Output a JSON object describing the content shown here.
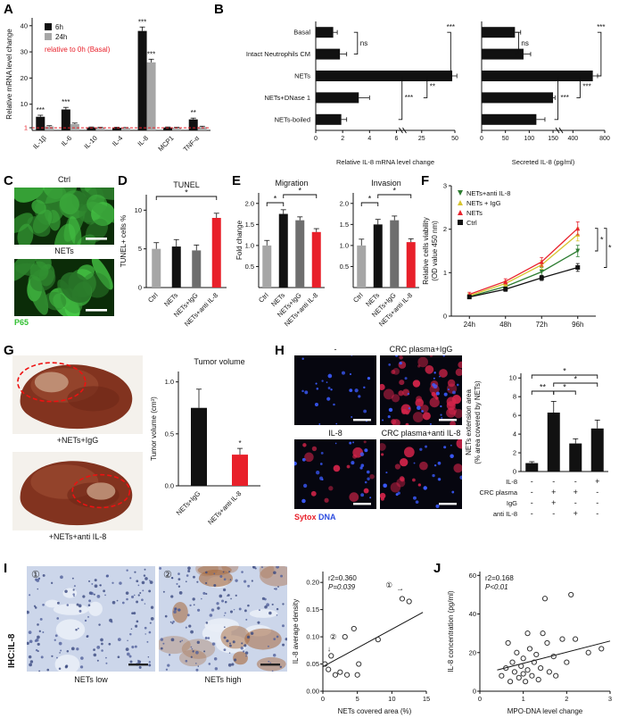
{
  "letters": {
    "A": "A",
    "B": "B",
    "C": "C",
    "D": "D",
    "E": "E",
    "F": "F",
    "G": "G",
    "H": "H",
    "I": "I",
    "J": "J"
  },
  "panelC": {
    "ctrl": "Ctrl",
    "nets": "NETs",
    "p65": "P65"
  },
  "panelG": {
    "liver1": "+NETs+IgG",
    "liver2": "+NETs+anti IL-8"
  },
  "panelH": {
    "img_labels": [
      "-",
      "CRC plasma+IgG",
      "IL-8",
      "CRC plasma+anti IL-8"
    ],
    "sytox": "Sytox",
    "dna": "DNA"
  },
  "panelI": {
    "ihc": "IHC:IL-8",
    "c1": "①",
    "c2": "②",
    "low": "NETs low",
    "high": "NETs high"
  },
  "chart_data": {
    "A": {
      "type": "bar",
      "ylabel": "Relative mRNA level change",
      "note": "relative to 0h (Basal)",
      "categories": [
        "IL-1β",
        "IL-6",
        "IL-10",
        "IL-4",
        "IL-8",
        "MCP1",
        "TNF-α"
      ],
      "series": [
        {
          "name": "6h",
          "color": "#111111",
          "values": [
            5.2,
            8.0,
            1.1,
            1.0,
            38.0,
            1.1,
            4.2
          ],
          "errors": [
            0.6,
            0.8,
            0.2,
            0.2,
            1.5,
            0.2,
            0.5
          ]
        },
        {
          "name": "24h",
          "color": "#a6a6a6",
          "values": [
            1.5,
            2.4,
            1.0,
            0.9,
            26.0,
            1.0,
            1.3
          ],
          "errors": [
            0.3,
            0.4,
            0.2,
            0.2,
            1.2,
            0.2,
            0.3
          ]
        }
      ],
      "ylim": [
        0,
        43
      ],
      "yticks": [
        {
          "v": 1,
          "label": "1",
          "color": "#e8202a"
        },
        {
          "v": 10,
          "label": "10"
        },
        {
          "v": 20,
          "label": "20"
        },
        {
          "v": 30,
          "label": "30"
        },
        {
          "v": 40,
          "label": "40"
        }
      ],
      "baseline": {
        "y": 1,
        "color": "#e8202a"
      },
      "sig": [
        {
          "cat": 0,
          "series": 0,
          "text": "***"
        },
        {
          "cat": 1,
          "series": 0,
          "text": "***"
        },
        {
          "cat": 4,
          "series": 0,
          "text": "***"
        },
        {
          "cat": 4,
          "series": 1,
          "text": "***"
        },
        {
          "cat": 6,
          "series": 0,
          "text": "**"
        }
      ],
      "rot": true
    },
    "B_left": {
      "type": "hbar",
      "xlabel": "Relative IL-8 mRNA level change",
      "categories": [
        "Basal",
        "Intact Neutrophils CM",
        "NETs",
        "NETs+DNase 1",
        "NETs-boiled"
      ],
      "values": [
        1.3,
        1.8,
        48,
        3.2,
        1.9
      ],
      "errors": [
        0.3,
        0.5,
        3.5,
        0.8,
        0.4
      ],
      "xticks": [
        0,
        2,
        4,
        6,
        25,
        50
      ],
      "brk": 6,
      "brkFrac": 0.58,
      "xmax": 50,
      "labels": true,
      "sig": [
        {
          "rows": [
            0,
            1
          ],
          "xf": 0.3,
          "text": "ns"
        },
        {
          "rows": [
            0,
            2
          ],
          "xf": 0.97,
          "text": "***"
        },
        {
          "rows": [
            2,
            3
          ],
          "xf": 0.8,
          "text": "**"
        },
        {
          "rows": [
            2,
            4
          ],
          "xf": 0.62,
          "text": "***"
        }
      ]
    },
    "B_right": {
      "type": "hbar",
      "xlabel": "Secreted IL-8 (pg/ml)",
      "categories": [
        "Basal",
        "Intact Neutrophils CM",
        "NETs",
        "NETs+DNase 1",
        "NETs-boiled"
      ],
      "values": [
        70,
        88,
        650,
        150,
        115
      ],
      "errors": [
        12,
        15,
        60,
        25,
        18
      ],
      "xticks": [
        0,
        50,
        100,
        150,
        400,
        800
      ],
      "brk": 150,
      "brkFrac": 0.58,
      "xmax": 800,
      "labels": false,
      "sig": [
        {
          "rows": [
            0,
            1
          ],
          "xf": 0.3,
          "text": "ns"
        },
        {
          "rows": [
            0,
            2
          ],
          "xf": 0.97,
          "text": "***"
        },
        {
          "rows": [
            2,
            3
          ],
          "xf": 0.8,
          "text": "***"
        },
        {
          "rows": [
            2,
            4
          ],
          "xf": 0.62,
          "text": "***"
        }
      ]
    },
    "D": {
      "type": "bar",
      "title": "TUNEL",
      "ylabel": "TUNEL+ cells %",
      "categories": [
        "Ctrl",
        "NETs",
        "NETs+IgG",
        "NETs+anti IL-8"
      ],
      "series": [
        {
          "name": "",
          "colors": [
            "#a6a6a6",
            "#111111",
            "#6e6e6e",
            "#e8202a"
          ],
          "values": [
            5.0,
            5.3,
            4.8,
            9.0
          ],
          "errors": [
            0.8,
            0.9,
            0.7,
            0.6
          ]
        }
      ],
      "ylim": [
        0,
        12
      ],
      "yticks": [
        {
          "v": 0,
          "label": "0"
        },
        {
          "v": 5,
          "label": "5"
        },
        {
          "v": 10,
          "label": "10"
        }
      ],
      "brackets": [
        {
          "from": 0,
          "to": 3,
          "text": "*",
          "level": 0
        }
      ],
      "rot": true
    },
    "E_migration": {
      "type": "bar",
      "title": "Migration",
      "ylabel": "Fold change",
      "categories": [
        "Ctrl",
        "NETs",
        "NETs+IgG",
        "NETs+anti IL-8"
      ],
      "series": [
        {
          "name": "",
          "colors": [
            "#a6a6a6",
            "#111111",
            "#6e6e6e",
            "#e8202a"
          ],
          "values": [
            1.0,
            1.75,
            1.6,
            1.32
          ],
          "errors": [
            0.12,
            0.1,
            0.08,
            0.08
          ]
        }
      ],
      "ylim": [
        0,
        2.25
      ],
      "yticks": [
        {
          "v": 0.5,
          "label": "0.5"
        },
        {
          "v": 1,
          "label": "1.0"
        },
        {
          "v": 1.5,
          "label": "1.5"
        },
        {
          "v": 2,
          "label": "2.0"
        }
      ],
      "brackets": [
        {
          "from": 0,
          "to": 1,
          "text": "*",
          "level": 1
        },
        {
          "from": 1,
          "to": 3,
          "text": "*",
          "level": 0
        }
      ],
      "rot": true
    },
    "E_invasion": {
      "type": "bar",
      "title": "Invasion",
      "categories": [
        "Ctrl",
        "NETs",
        "NETs+IgG",
        "NETs+anti IL-8"
      ],
      "series": [
        {
          "name": "",
          "colors": [
            "#a6a6a6",
            "#111111",
            "#6e6e6e",
            "#e8202a"
          ],
          "values": [
            1.0,
            1.5,
            1.6,
            1.08
          ],
          "errors": [
            0.15,
            0.12,
            0.1,
            0.08
          ]
        }
      ],
      "ylim": [
        0,
        2.25
      ],
      "yticks": [
        {
          "v": 0.5,
          "label": "0.5"
        },
        {
          "v": 1,
          "label": "1.0"
        },
        {
          "v": 1.5,
          "label": "1.5"
        },
        {
          "v": 2,
          "label": "2.0"
        }
      ],
      "brackets": [
        {
          "from": 0,
          "to": 1,
          "text": "*",
          "level": 1
        },
        {
          "from": 1,
          "to": 3,
          "text": "*",
          "level": 0
        }
      ],
      "rot": true
    },
    "F": {
      "type": "line",
      "ylabel_lines": [
        "Relative cells viability",
        "(OD value 450 nm)"
      ],
      "x": [
        "24h",
        "48h",
        "72h",
        "96h"
      ],
      "ylim": [
        0,
        3
      ],
      "yticks": [
        0,
        1,
        2,
        3
      ],
      "series": [
        {
          "name": "NETs+anti IL-8",
          "color": "#2e7d32",
          "marker": "triangle-down",
          "values": [
            0.45,
            0.68,
            1.02,
            1.5
          ],
          "errors": [
            0.05,
            0.06,
            0.1,
            0.13
          ]
        },
        {
          "name": "NETs + IgG",
          "color": "#d7c430",
          "marker": "triangle-up",
          "values": [
            0.47,
            0.75,
            1.18,
            1.88
          ],
          "errors": [
            0.05,
            0.06,
            0.1,
            0.15
          ]
        },
        {
          "name": "NETs",
          "color": "#e8232d",
          "marker": "triangle-up",
          "values": [
            0.5,
            0.8,
            1.25,
            2.02
          ],
          "errors": [
            0.05,
            0.06,
            0.1,
            0.15
          ]
        },
        {
          "name": "Ctrl",
          "color": "#111111",
          "marker": "square",
          "values": [
            0.44,
            0.62,
            0.88,
            1.12
          ],
          "errors": [
            0.04,
            0.05,
            0.06,
            0.09
          ]
        }
      ],
      "sig": [
        "*",
        "*"
      ]
    },
    "G": {
      "type": "bar",
      "title": "Tumor volume",
      "ylabel": "Tumor volume (cm³)",
      "categories": [
        "NETs+IgG",
        "NETs+anti IL-8"
      ],
      "series": [
        {
          "name": "",
          "colors": [
            "#111111",
            "#e8202a"
          ],
          "values": [
            0.75,
            0.3
          ],
          "errors": [
            0.18,
            0.06
          ]
        }
      ],
      "ylim": [
        0,
        1.1
      ],
      "yticks": [
        {
          "v": 0,
          "label": "0.0"
        },
        {
          "v": 0.5,
          "label": "0.5"
        },
        {
          "v": 1,
          "label": "1.0"
        }
      ],
      "sig": [
        {
          "cat": 1,
          "series": 0,
          "text": "*"
        }
      ],
      "rot": true,
      "bw": 18
    },
    "H": {
      "type": "bar",
      "ylabel_lines": [
        "NETs extension area",
        "(% area covered by NETs)"
      ],
      "categories": [
        "",
        "",
        "",
        ""
      ],
      "series": [
        {
          "name": "",
          "colors": [
            "#111111",
            "#111111",
            "#111111",
            "#111111"
          ],
          "values": [
            0.9,
            6.3,
            3.0,
            4.6
          ],
          "errors": [
            0.15,
            1.2,
            0.5,
            0.9
          ]
        }
      ],
      "ylim": [
        0,
        10.5
      ],
      "yticks": [
        {
          "v": 0,
          "label": "0"
        },
        {
          "v": 2,
          "label": "2"
        },
        {
          "v": 4,
          "label": "4"
        },
        {
          "v": 6,
          "label": "6"
        },
        {
          "v": 8,
          "label": "8"
        },
        {
          "v": 10,
          "label": "10"
        }
      ],
      "brackets": [
        {
          "from": 0,
          "to": 3,
          "text": "*",
          "level": 0
        },
        {
          "from": 1,
          "to": 3,
          "text": "*",
          "level": 1
        },
        {
          "from": 0,
          "to": 1,
          "text": "**",
          "level": 2
        },
        {
          "from": 1,
          "to": 2,
          "text": "*",
          "level": 2
        }
      ],
      "bw": 14,
      "matrix": {
        "rows": [
          "IL-8",
          "CRC plasma",
          "IgG",
          "anti IL-8"
        ],
        "values": [
          [
            "-",
            "-",
            "-",
            "+"
          ],
          [
            "-",
            "+",
            "+",
            "-"
          ],
          [
            "-",
            "+",
            "-",
            "-"
          ],
          [
            "-",
            "-",
            "+",
            "-"
          ]
        ]
      }
    },
    "I": {
      "type": "scatter",
      "xlabel": "NETs covered area (%)",
      "ylabel": "IL-8 average density",
      "r2_label": "r2=0.360",
      "p_label": "P=0.039",
      "xlim": [
        0,
        15
      ],
      "xticks": [
        0,
        5,
        10,
        15
      ],
      "ylim": [
        0,
        0.22
      ],
      "yticks": [
        {
          "v": 0,
          "label": "0.00"
        },
        {
          "v": 0.05,
          "label": "0.05"
        },
        {
          "v": 0.1,
          "label": "0.10"
        },
        {
          "v": 0.15,
          "label": "0.15"
        },
        {
          "v": 0.2,
          "label": "0.20"
        }
      ],
      "points": [
        [
          0.3,
          0.05
        ],
        [
          0.8,
          0.04
        ],
        [
          1.2,
          0.065
        ],
        [
          1.8,
          0.03
        ],
        [
          2.5,
          0.035
        ],
        [
          3.2,
          0.1
        ],
        [
          3.5,
          0.03
        ],
        [
          4.5,
          0.115
        ],
        [
          5.0,
          0.03
        ],
        [
          5.2,
          0.05
        ],
        [
          8.0,
          0.095
        ],
        [
          11.5,
          0.17
        ],
        [
          12.5,
          0.165
        ]
      ],
      "line": [
        [
          0,
          0.045
        ],
        [
          14.5,
          0.145
        ]
      ],
      "annots": [
        {
          "text": "①",
          "x": 9.6,
          "y": 0.195
        },
        {
          "text": "→",
          "x": 11.2,
          "y": 0.19
        },
        {
          "text": "②",
          "x": 1.5,
          "y": 0.1
        },
        {
          "text": "↓",
          "x": 0.9,
          "y": 0.078
        }
      ]
    },
    "J": {
      "type": "scatter",
      "xlabel": "MPO-DNA level change",
      "ylabel": "IL-8 concentration (pg/ml)",
      "r2_label": "r2=0.168",
      "p_label": "P<0.01",
      "xlim": [
        0,
        3
      ],
      "xticks": [
        0,
        1,
        2,
        3
      ],
      "ylim": [
        0,
        62
      ],
      "yticks": [
        {
          "v": 0,
          "label": "0"
        },
        {
          "v": 20,
          "label": "20"
        },
        {
          "v": 40,
          "label": "40"
        },
        {
          "v": 60,
          "label": "60"
        }
      ],
      "points": [
        [
          0.5,
          8
        ],
        [
          0.6,
          12
        ],
        [
          0.65,
          25
        ],
        [
          0.7,
          5
        ],
        [
          0.75,
          15
        ],
        [
          0.8,
          10
        ],
        [
          0.85,
          20
        ],
        [
          0.9,
          7
        ],
        [
          0.95,
          13
        ],
        [
          1.0,
          9
        ],
        [
          1.0,
          17
        ],
        [
          1.05,
          5
        ],
        [
          1.1,
          11
        ],
        [
          1.1,
          30
        ],
        [
          1.15,
          22
        ],
        [
          1.2,
          8
        ],
        [
          1.25,
          15
        ],
        [
          1.3,
          19
        ],
        [
          1.35,
          6
        ],
        [
          1.4,
          12
        ],
        [
          1.45,
          30
        ],
        [
          1.5,
          48
        ],
        [
          1.55,
          25
        ],
        [
          1.6,
          10
        ],
        [
          1.7,
          18
        ],
        [
          1.75,
          8
        ],
        [
          1.9,
          27
        ],
        [
          2.0,
          15
        ],
        [
          2.1,
          50
        ],
        [
          2.2,
          27
        ],
        [
          2.5,
          20
        ],
        [
          2.8,
          22
        ]
      ],
      "line": [
        [
          0.4,
          11
        ],
        [
          3,
          26
        ]
      ],
      "annots": []
    }
  }
}
